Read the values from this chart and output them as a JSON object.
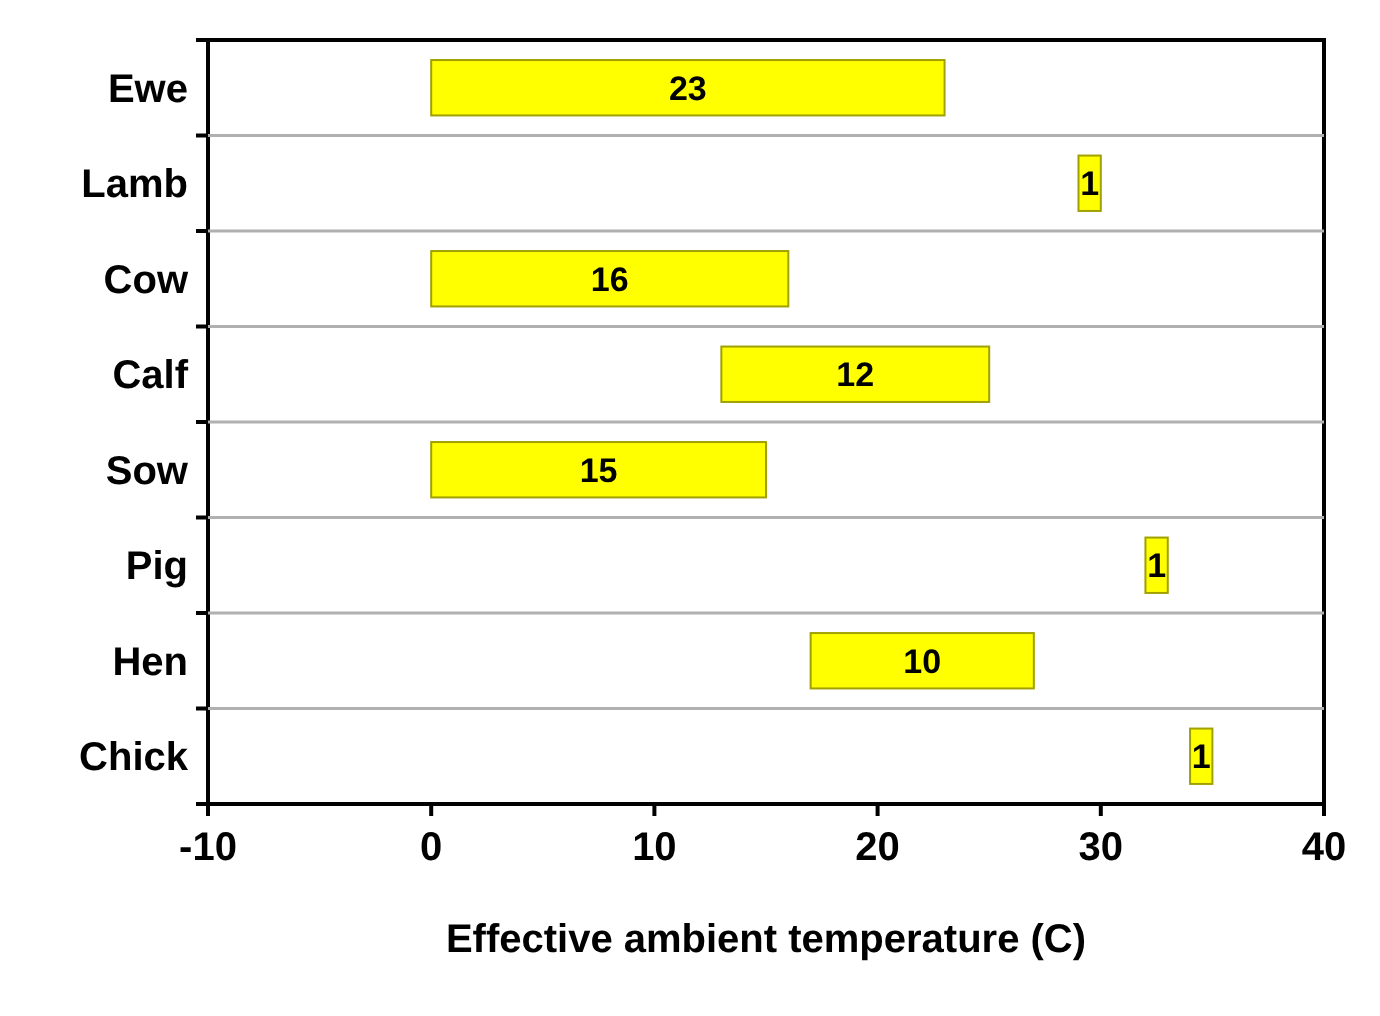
{
  "chart_data": {
    "type": "bar",
    "orientation": "horizontal",
    "categories": [
      "Ewe",
      "Lamb",
      "Cow",
      "Calf",
      "Sow",
      "Pig",
      "Hen",
      "Chick"
    ],
    "values": [
      23,
      1,
      16,
      12,
      15,
      1,
      10,
      1
    ],
    "base": [
      0,
      29,
      0,
      13,
      0,
      32,
      17,
      34
    ],
    "color": "#ffff00",
    "xlim": [
      -10,
      40
    ],
    "xticks": [
      -10,
      0,
      10,
      20,
      30,
      40
    ],
    "xlabel": "Effective ambient temperature (C)",
    "grid": "y",
    "data_labels": true
  }
}
